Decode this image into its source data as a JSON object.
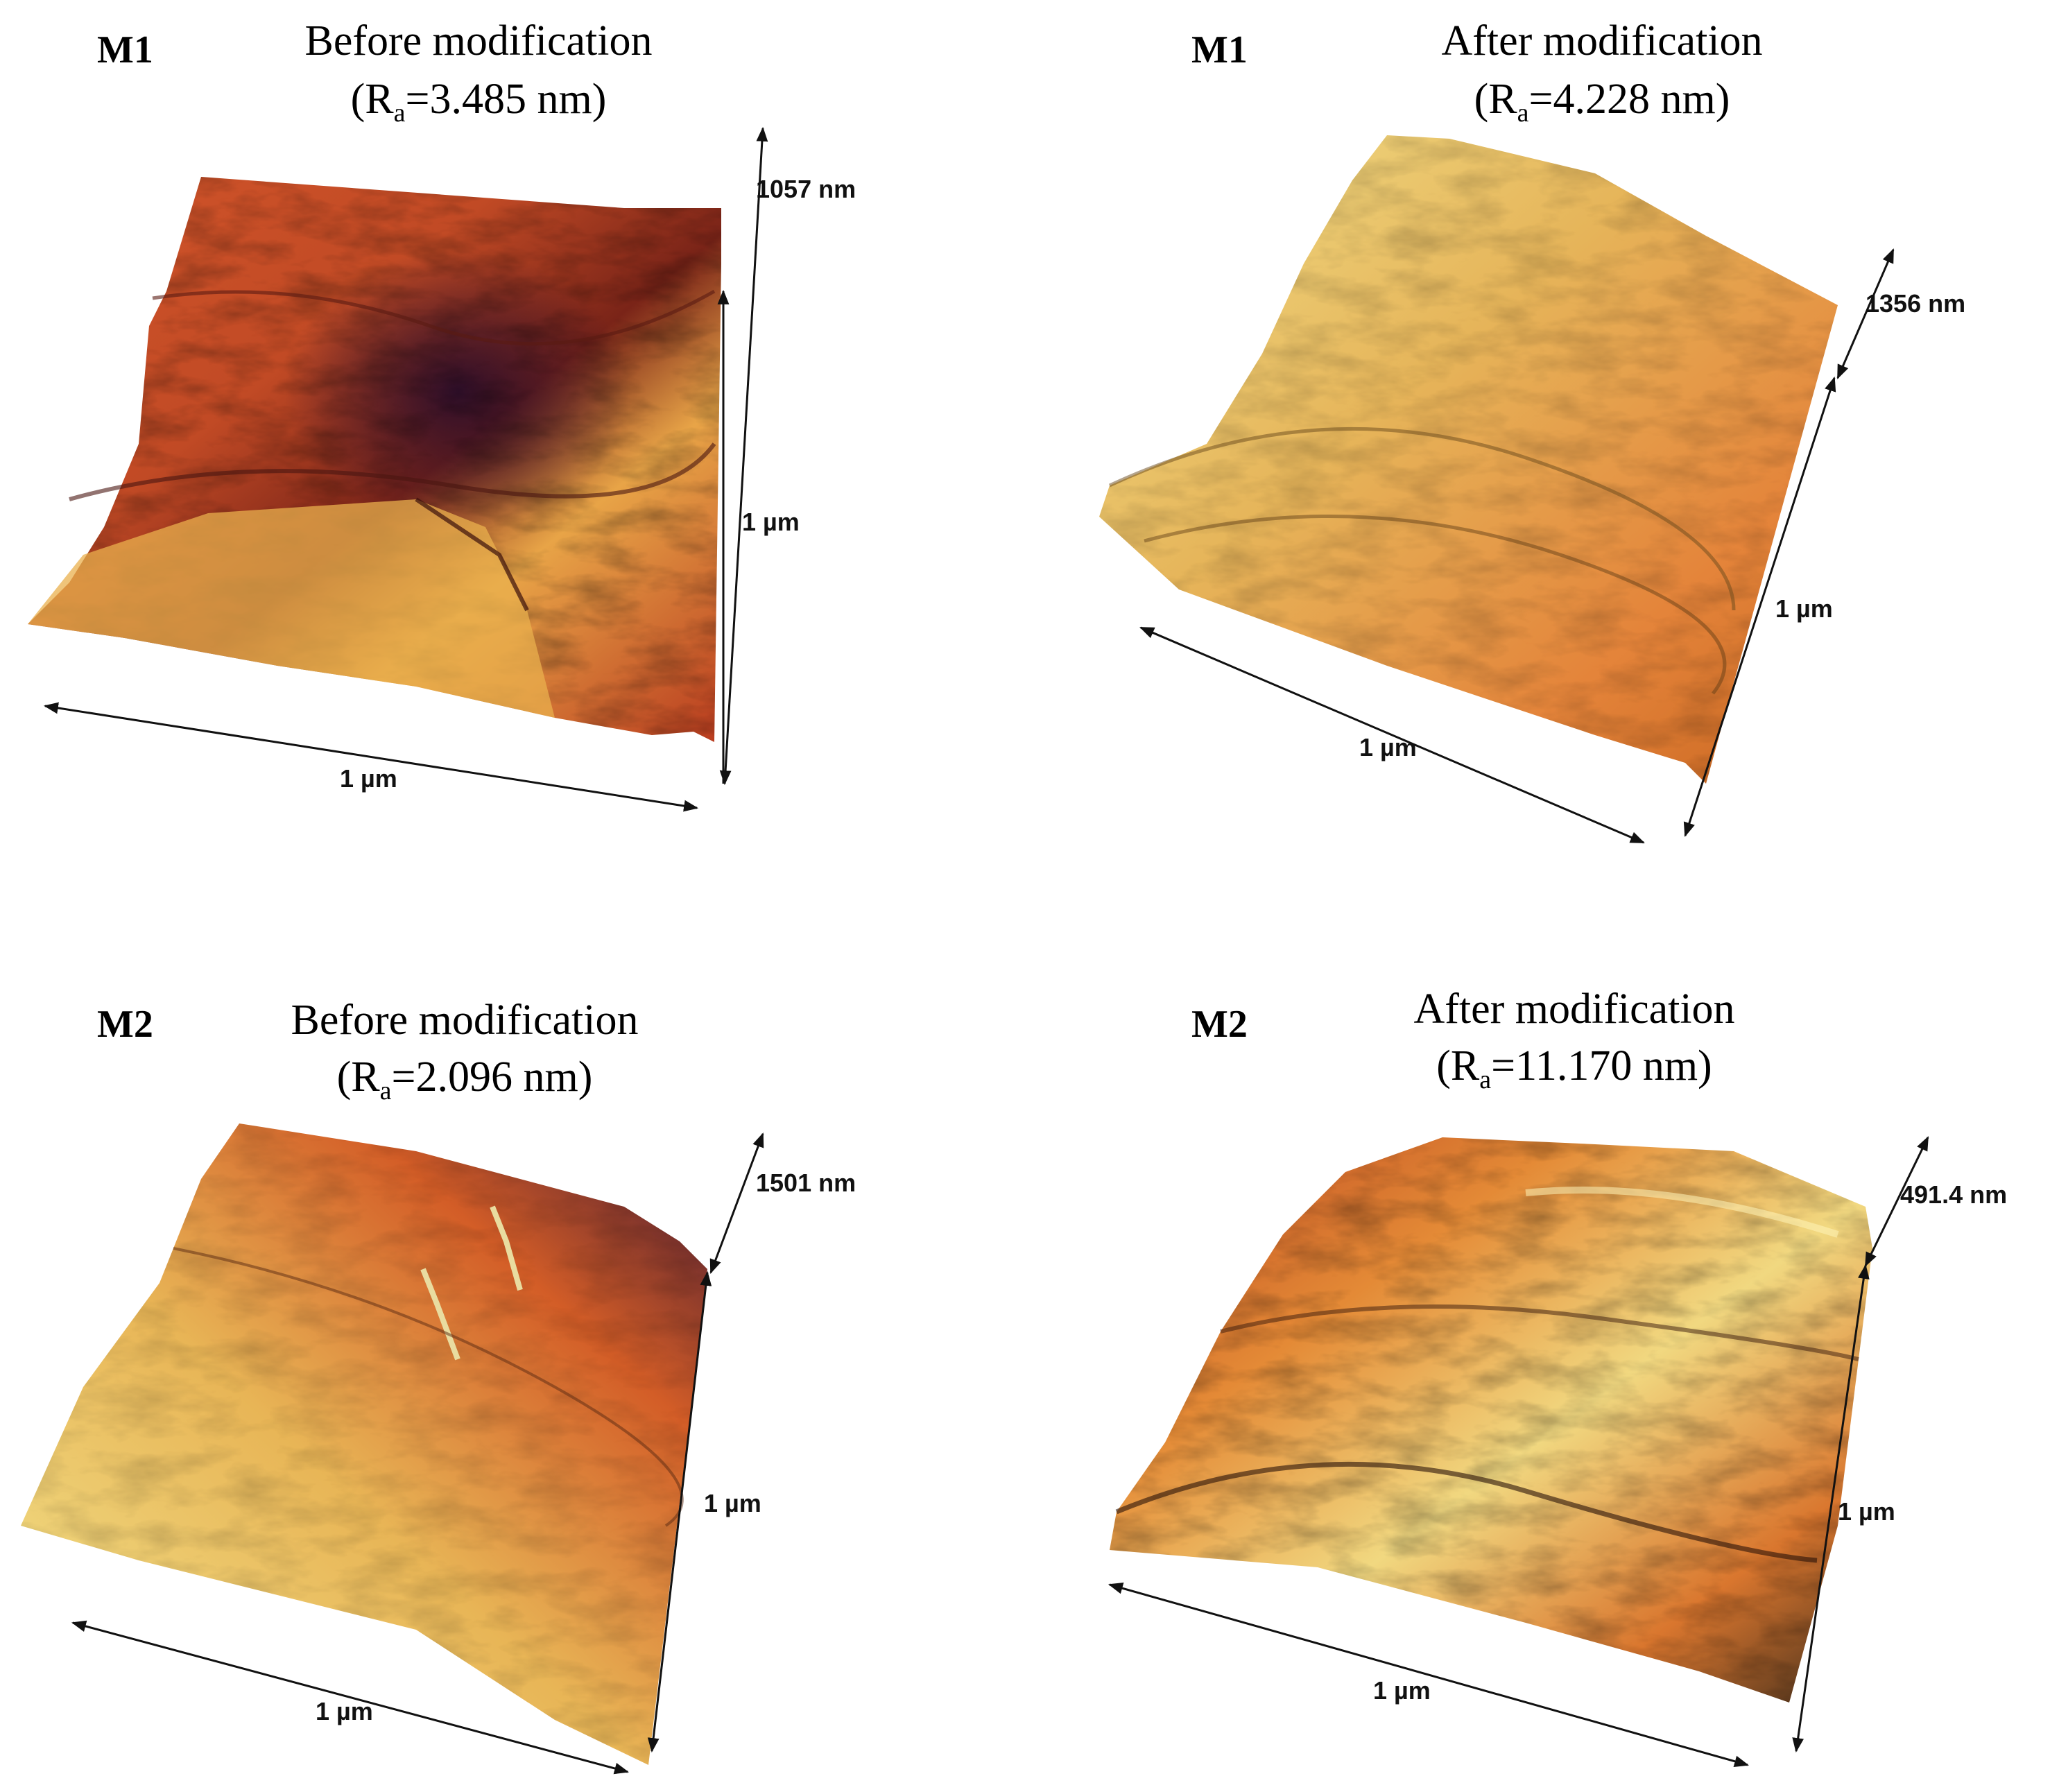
{
  "panels": [
    {
      "sample": "M1",
      "title": "Before modification",
      "ra_prefix": "(R",
      "ra_sub": "a",
      "ra_value": "=3.485 nm)",
      "z_scale": "1057 nm",
      "y_scale": "1 µm",
      "x_scale": "1 µm"
    },
    {
      "sample": "M1",
      "title": "After modification",
      "ra_prefix": "(R",
      "ra_sub": "a",
      "ra_value": "=4.228 nm)",
      "z_scale": "1356 nm",
      "y_scale": "1 µm",
      "x_scale": "1 µm"
    },
    {
      "sample": "M2",
      "title": "Before modification",
      "ra_prefix": "(R",
      "ra_sub": "a",
      "ra_value": "=2.096 nm)",
      "z_scale": "1501 nm",
      "y_scale": "1 µm",
      "x_scale": "1 µm"
    },
    {
      "sample": "M2",
      "title": "After modification",
      "ra_prefix": "(R",
      "ra_sub": "a",
      "ra_value": "=11.170 nm)",
      "z_scale": "491.4 nm",
      "y_scale": "1 µm",
      "x_scale": "1 µm"
    }
  ]
}
